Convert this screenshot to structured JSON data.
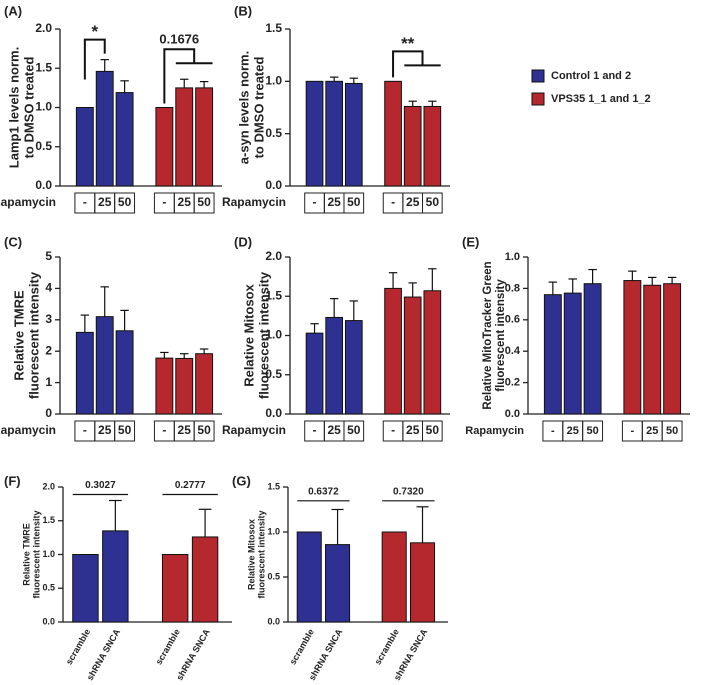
{
  "chart_data": [
    {
      "type": "bar",
      "panel": "(A)",
      "ylabel": [
        "Lamp1 levels norm.",
        "to DMSO treated"
      ],
      "x_label": "Rapamycin",
      "categories": [
        "-",
        "25",
        "50"
      ],
      "series": [
        {
          "color": "#2e3192",
          "values": [
            1.0,
            1.46,
            1.19
          ],
          "errors": [
            null,
            0.15,
            0.15
          ]
        },
        {
          "color": "#b5282e",
          "values": [
            1.0,
            1.25,
            1.25
          ],
          "errors": [
            null,
            0.11,
            0.08
          ]
        }
      ],
      "ylim": [
        0,
        2
      ],
      "yticks": [
        {
          "value": 0,
          "label": "0.0"
        },
        0.5,
        {
          "value": 1,
          "label": "1.0"
        },
        1.5,
        {
          "value": 2,
          "label": "2.0"
        }
      ],
      "annotations": [
        {
          "text": "*",
          "series": 0,
          "from": 0,
          "to": 1,
          "style": "bracket"
        },
        {
          "text": "0.1676",
          "series": 1,
          "from": 0,
          "to": [
            1,
            2
          ],
          "style": "bracket"
        }
      ]
    },
    {
      "type": "bar",
      "panel": "(B)",
      "ylabel": [
        "a-syn levels norm.",
        "to DMSO treated"
      ],
      "x_label": "Rapamycin",
      "categories": [
        "-",
        "25",
        "50"
      ],
      "series": [
        {
          "name": "Control 1 and 2",
          "color": "#2e3192",
          "values": [
            1.0,
            1.0,
            0.98
          ],
          "errors": [
            null,
            0.04,
            0.05
          ]
        },
        {
          "name": "VPS35 1_1 and 1_2",
          "color": "#b5282e",
          "values": [
            1.0,
            0.76,
            0.76
          ],
          "errors": [
            null,
            0.05,
            0.05
          ]
        }
      ],
      "ylim": [
        0,
        1.5
      ],
      "yticks": [
        {
          "value": 0,
          "label": "0.0"
        },
        0.5,
        {
          "value": 1,
          "label": "1.0"
        },
        1.5
      ],
      "legend": "right",
      "annotations": [
        {
          "text": "**",
          "series": 1,
          "from": 0,
          "to": [
            1,
            2
          ],
          "style": "bracket"
        }
      ]
    },
    {
      "type": "bar",
      "panel": "(C)",
      "ylabel": [
        "Relative TMRE",
        "fluorescent intensity"
      ],
      "x_label": "Rapamycin",
      "categories": [
        "-",
        "25",
        "50"
      ],
      "series": [
        {
          "color": "#2e3192",
          "values": [
            2.6,
            3.1,
            2.65
          ],
          "errors": [
            0.55,
            0.95,
            0.65
          ]
        },
        {
          "color": "#b5282e",
          "values": [
            1.78,
            1.77,
            1.92
          ],
          "errors": [
            0.18,
            0.15,
            0.15
          ]
        }
      ],
      "ylim": [
        0,
        5
      ],
      "yticks": [
        0,
        1,
        2,
        3,
        4,
        5
      ]
    },
    {
      "type": "bar",
      "panel": "(D)",
      "ylabel": [
        "Relative Mitosox",
        "fluorescent intensity"
      ],
      "x_label": "Rapamycin",
      "categories": [
        "-",
        "25",
        "50"
      ],
      "series": [
        {
          "color": "#2e3192",
          "values": [
            1.03,
            1.23,
            1.19
          ],
          "errors": [
            0.12,
            0.24,
            0.25
          ]
        },
        {
          "color": "#b5282e",
          "values": [
            1.6,
            1.49,
            1.57
          ],
          "errors": [
            0.2,
            0.18,
            0.28
          ]
        }
      ],
      "ylim": [
        0,
        2
      ],
      "yticks": [
        {
          "value": 0,
          "label": "0.0"
        },
        0.5,
        {
          "value": 1,
          "label": "1.0"
        },
        1.5,
        {
          "value": 2,
          "label": "2.0"
        }
      ]
    },
    {
      "type": "bar",
      "panel": "(E)",
      "ylabel": [
        "Relative MitoTracker Green",
        "fluorescent intensity"
      ],
      "x_label": "Rapamycin",
      "categories": [
        "-",
        "25",
        "50"
      ],
      "series": [
        {
          "color": "#2e3192",
          "values": [
            0.76,
            0.77,
            0.83
          ],
          "errors": [
            0.08,
            0.09,
            0.09
          ]
        },
        {
          "color": "#b5282e",
          "values": [
            0.85,
            0.82,
            0.83
          ],
          "errors": [
            0.06,
            0.05,
            0.04
          ]
        }
      ],
      "ylim": [
        0,
        1
      ],
      "yticks": [
        {
          "value": 0,
          "label": "0.0"
        },
        0.2,
        0.4,
        0.6,
        0.8,
        {
          "value": 1,
          "label": "1.0"
        }
      ]
    },
    {
      "type": "bar",
      "panel": "(F)",
      "ylabel": [
        "Relative TMRE",
        "fluorescent intensity"
      ],
      "categories": [
        "scramble",
        "shRNA SNCA"
      ],
      "series": [
        {
          "color": "#2e3192",
          "values": [
            1.0,
            1.35
          ],
          "errors": [
            null,
            0.45
          ]
        },
        {
          "color": "#b5282e",
          "values": [
            1.0,
            1.26
          ],
          "errors": [
            null,
            0.41
          ]
        }
      ],
      "ylim": [
        0,
        2
      ],
      "yticks": [
        {
          "value": 0,
          "label": "0.0"
        },
        0.5,
        {
          "value": 1,
          "label": "1.0"
        },
        1.5,
        {
          "value": 2,
          "label": "2.0"
        }
      ],
      "annotations": [
        {
          "text": "0.3027",
          "series": 0,
          "from": 0,
          "to": 1,
          "style": "line"
        },
        {
          "text": "0.2777",
          "series": 1,
          "from": 0,
          "to": 1,
          "style": "line"
        }
      ]
    },
    {
      "type": "bar",
      "panel": "(G)",
      "ylabel": [
        "Relative Mitosox",
        "fluorescent intensity"
      ],
      "categories": [
        "scramble",
        "shRNA SNCA"
      ],
      "series": [
        {
          "color": "#2e3192",
          "values": [
            1.0,
            0.86
          ],
          "errors": [
            null,
            0.39
          ]
        },
        {
          "color": "#b5282e",
          "values": [
            1.0,
            0.88
          ],
          "errors": [
            null,
            0.4
          ]
        }
      ],
      "ylim": [
        0,
        1.5
      ],
      "yticks": [
        {
          "value": 0,
          "label": "0.0"
        },
        0.5,
        {
          "value": 1,
          "label": "1.0"
        },
        1.5
      ],
      "annotations": [
        {
          "text": "0.6372",
          "series": 0,
          "from": 0,
          "to": 1,
          "style": "line"
        },
        {
          "text": "0.7320",
          "series": 1,
          "from": 0,
          "to": 1,
          "style": "line"
        }
      ]
    }
  ]
}
